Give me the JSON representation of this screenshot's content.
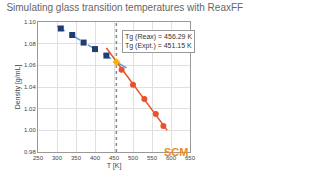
{
  "chart_data": {
    "type": "scatter",
    "title": "Simulating glass transition temperatures with ReaxFF",
    "x_label": "T [K]",
    "y_label": "Density [g/mL]",
    "xlim": [
      250,
      650
    ],
    "xticks": [
      250,
      300,
      350,
      400,
      450,
      500,
      550,
      600,
      650
    ],
    "ylim": [
      0.98,
      1.1
    ],
    "yticks": [
      0.98,
      {
        "value": 1.0,
        "label": "1.00"
      },
      1.02,
      1.04,
      1.06,
      1.08,
      {
        "value": 1.1,
        "label": "1.10"
      }
    ],
    "grid": true,
    "annotations": [
      "Tg (Reax) = 456.29 K",
      "Tg (Expt.) = 451.15 K"
    ],
    "logo": "SCM",
    "series": [
      {
        "type": "line",
        "line_style": "dashed",
        "color": "#5b9bd5",
        "x": [
          300,
          500
        ],
        "values": [
          1.096,
          1.054
        ]
      },
      {
        "type": "line",
        "line_style": "solid",
        "color": "#e8512a",
        "x": [
          430,
          590
        ],
        "values": [
          1.076,
          1.0
        ]
      },
      {
        "type": "line",
        "line_style": "dotted",
        "color": "#888888",
        "x": [
          456.29,
          456.29
        ],
        "values": [
          0.98,
          1.1
        ]
      },
      {
        "type": "scatter",
        "marker": "square",
        "color": "#1f3c74",
        "x": [
          310,
          340,
          370,
          400,
          430
        ],
        "values": [
          1.094,
          1.088,
          1.081,
          1.075,
          1.069
        ]
      },
      {
        "type": "scatter",
        "marker": "circle",
        "color": "#e8512a",
        "x": [
          470,
          500,
          530,
          560,
          580
        ],
        "values": [
          1.056,
          1.042,
          1.029,
          1.015,
          1.004
        ]
      },
      {
        "type": "scatter",
        "marker": "diamond",
        "color": "#f5b400",
        "x": [
          456.29
        ],
        "values": [
          1.063
        ]
      }
    ]
  }
}
